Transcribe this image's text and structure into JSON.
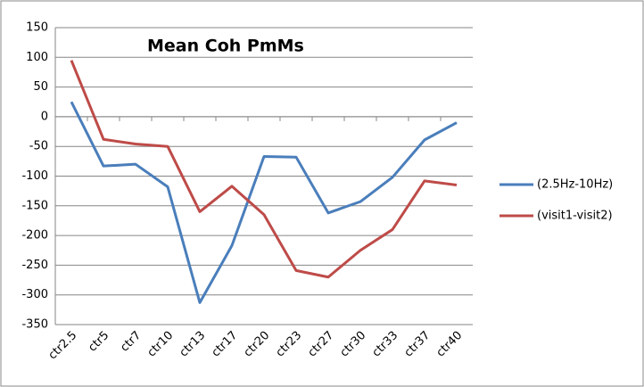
{
  "chart_data": {
    "type": "line",
    "title": "Mean Coh PmMs",
    "categories": [
      "ctr2.5",
      "ctr5",
      "ctr7",
      "ctr10",
      "ctr13",
      "ctr17",
      "ctr20",
      "ctr23",
      "ctr27",
      "ctr30",
      "ctr33",
      "ctr37",
      "ctr40"
    ],
    "series": [
      {
        "name": "(2.5Hz-10Hz)",
        "color": "#4a7ebb",
        "values": [
          25,
          -83,
          -80,
          -118,
          -313,
          -217,
          -67,
          -68,
          -162,
          -143,
          -102,
          -39,
          -10
        ]
      },
      {
        "name": "(visit1-visit2)",
        "color": "#be4b48",
        "values": [
          95,
          -38,
          -46,
          -50,
          -160,
          -117,
          -165,
          -259,
          -270,
          -225,
          -190,
          -108,
          -115
        ]
      }
    ],
    "ylim": [
      -350,
      150
    ],
    "yticks": [
      -350,
      -300,
      -250,
      -200,
      -150,
      -100,
      -50,
      0,
      50,
      100,
      150
    ],
    "grid": true,
    "legend": "right"
  }
}
